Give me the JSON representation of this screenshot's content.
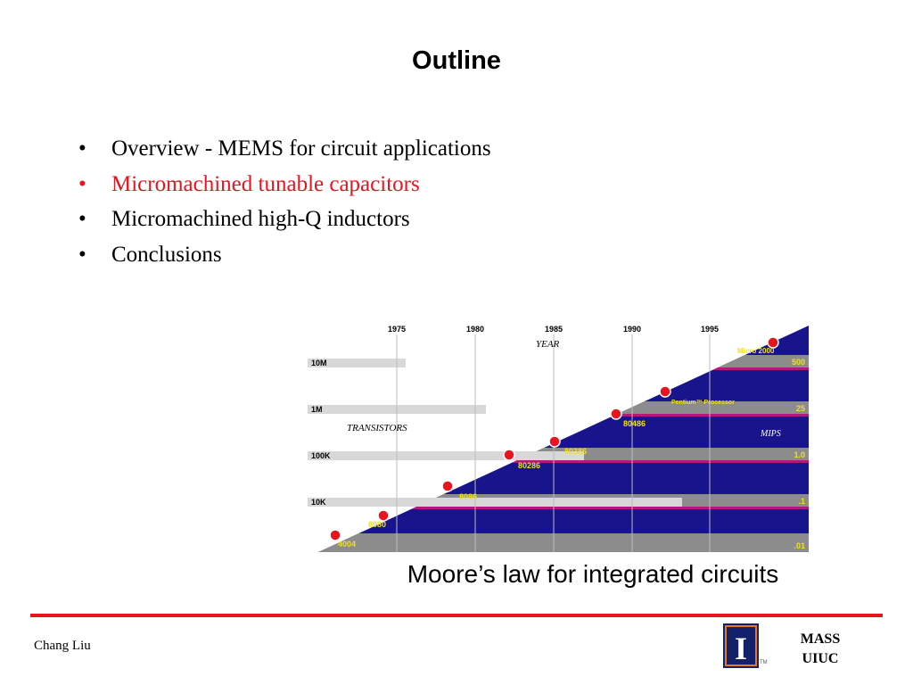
{
  "slide": {
    "title": "Outline",
    "bullets": [
      {
        "text": "Overview - MEMS for circuit applications",
        "highlight": false
      },
      {
        "text": "Micromachined tunable capacitors",
        "highlight": true
      },
      {
        "text": "Micromachined high-Q inductors",
        "highlight": false
      },
      {
        "text": "Conclusions",
        "highlight": false
      }
    ],
    "bullet_symbol": "•",
    "highlight_color": "#e8141e"
  },
  "figure": {
    "x_axis_label": "YEAR",
    "years": [
      "1975",
      "1980",
      "1985",
      "1990",
      "1995"
    ],
    "left_axis_label": "TRANSISTORS",
    "left_ticks": [
      "10M",
      "1M",
      "100K",
      "10K"
    ],
    "right_axis_label": "MIPS",
    "right_ticks": [
      "500",
      "25",
      "1.0",
      ".1",
      ".01"
    ],
    "processors": [
      "4004",
      "8080",
      "8086",
      "80286",
      "80386",
      "80486",
      "Pentium™ Processor",
      "Micro 2000"
    ],
    "colors": {
      "band_dark": "#18148c",
      "band_gray": "#8c8c8c",
      "marker": "#e8141e",
      "label": "#f0e020"
    }
  },
  "caption": "Moore’s law for integrated circuits",
  "footer": {
    "author": "Chang Liu",
    "logo_letter": "I",
    "logo_mark": "TM",
    "lab_line1": "MASS",
    "lab_line2": "UIUC"
  }
}
